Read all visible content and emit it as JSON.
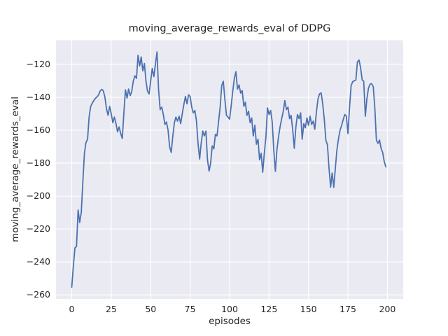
{
  "colors": {
    "figure_bg": "#ffffff",
    "axes_bg": "#eaeaf2",
    "grid": "#ffffff",
    "line": "#4c72b0",
    "text": "#262626"
  },
  "chart_data": {
    "type": "line",
    "title": "moving_average_rewards_eval of DDPG",
    "xlabel": "episodes",
    "ylabel": "moving_average_rewards_eval",
    "legend_position": "none",
    "grid": true,
    "x_ticks": [
      0,
      25,
      50,
      75,
      100,
      125,
      150,
      175,
      200
    ],
    "y_ticks": [
      -120,
      -140,
      -160,
      -180,
      -200,
      -220,
      -240,
      -260
    ],
    "xlim": [
      -10.0,
      210.0
    ],
    "ylim": [
      -262.4,
      -105.4
    ],
    "x_start": 0,
    "x_step": 1,
    "x_count": 200,
    "series": [
      {
        "name": "moving_average_rewards_eval",
        "color": "#4c72b0",
        "values": [
          -255.3,
          -242.5,
          -231.3,
          -230.6,
          -208.5,
          -216.0,
          -210.0,
          -192.0,
          -174.0,
          -167.5,
          -165.5,
          -152.0,
          -145.5,
          -143.5,
          -142.0,
          -140.6,
          -139.8,
          -138.5,
          -136.2,
          -135.2,
          -136.1,
          -140.0,
          -147.0,
          -151.0,
          -145.5,
          -150.0,
          -155.5,
          -152.0,
          -156.0,
          -161.0,
          -158.0,
          -162.0,
          -165.0,
          -150.0,
          -135.5,
          -140.5,
          -135.0,
          -139.0,
          -136.5,
          -130.0,
          -127.0,
          -128.5,
          -114.5,
          -121.0,
          -115.5,
          -124.0,
          -119.5,
          -130.0,
          -136.5,
          -138.0,
          -130.0,
          -122.5,
          -127.5,
          -120.0,
          -112.5,
          -135.0,
          -147.5,
          -146.0,
          -150.5,
          -156.5,
          -155.0,
          -160.0,
          -170.0,
          -173.5,
          -164.0,
          -155.5,
          -152.0,
          -154.5,
          -151.5,
          -156.0,
          -150.0,
          -144.5,
          -139.5,
          -144.0,
          -138.5,
          -139.5,
          -146.0,
          -149.5,
          -148.0,
          -154.5,
          -168.0,
          -177.5,
          -168.0,
          -160.5,
          -163.5,
          -160.5,
          -178.0,
          -184.8,
          -180.0,
          -169.5,
          -171.3,
          -162.5,
          -163.5,
          -155.0,
          -146.0,
          -133.0,
          -130.3,
          -141.0,
          -151.0,
          -152.0,
          -153.3,
          -145.0,
          -136.5,
          -128.5,
          -124.5,
          -135.0,
          -132.5,
          -137.5,
          -136.0,
          -145.5,
          -143.0,
          -151.0,
          -148.5,
          -155.5,
          -152.5,
          -163.5,
          -157.0,
          -168.5,
          -165.5,
          -178.0,
          -174.0,
          -185.5,
          -174.0,
          -164.0,
          -146.5,
          -150.5,
          -148.0,
          -155.0,
          -172.0,
          -185.0,
          -172.0,
          -164.0,
          -158.0,
          -153.0,
          -148.5,
          -142.0,
          -147.5,
          -146.0,
          -153.0,
          -151.0,
          -160.0,
          -171.0,
          -158.0,
          -150.5,
          -153.0,
          -149.5,
          -165.5,
          -156.0,
          -158.5,
          -152.5,
          -157.0,
          -151.5,
          -156.5,
          -154.5,
          -159.5,
          -149.0,
          -141.0,
          -138.0,
          -137.4,
          -144.0,
          -153.5,
          -166.0,
          -169.0,
          -183.0,
          -194.5,
          -186.0,
          -194.7,
          -183.0,
          -172.0,
          -165.0,
          -160.0,
          -157.0,
          -153.5,
          -150.5,
          -151.5,
          -162.0,
          -146.5,
          -133.0,
          -130.5,
          -130.0,
          -129.5,
          -118.5,
          -117.4,
          -122.0,
          -129.5,
          -130.2,
          -151.5,
          -141.0,
          -134.5,
          -132.0,
          -131.8,
          -133.5,
          -146.0,
          -166.0,
          -168.0,
          -166.0,
          -171.0,
          -173.5,
          -179.0,
          -182.3
        ]
      }
    ]
  }
}
